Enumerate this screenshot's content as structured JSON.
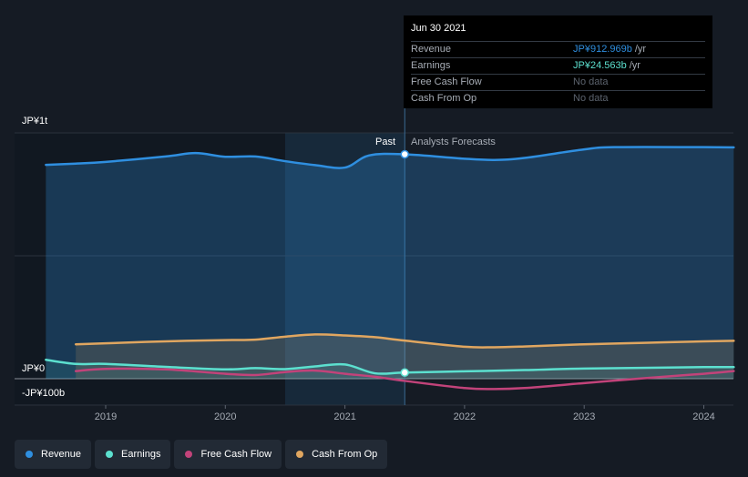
{
  "chart_data": {
    "type": "line",
    "y_axis": {
      "top_label": "JP¥1t",
      "zero_label": "JP¥0",
      "bottom_label": "-JP¥100b",
      "unit": "JP¥ billions",
      "ylim": [
        -100,
        1000
      ]
    },
    "x_ticks": [
      "2019",
      "2020",
      "2021",
      "2022",
      "2023",
      "2024"
    ],
    "regions": {
      "past_label": "Past",
      "forecast_label": "Analysts Forecasts",
      "split_date": 2021.5
    },
    "series": [
      {
        "name": "Revenue",
        "color": "#2f8fe0",
        "points": [
          [
            2018.5,
            870
          ],
          [
            2018.75,
            875
          ],
          [
            2019.0,
            882
          ],
          [
            2019.5,
            904
          ],
          [
            2019.75,
            918
          ],
          [
            2020.0,
            903
          ],
          [
            2020.25,
            904
          ],
          [
            2020.5,
            885
          ],
          [
            2020.75,
            869
          ],
          [
            2021.0,
            859
          ],
          [
            2021.2,
            908
          ],
          [
            2021.5,
            913
          ],
          [
            2022.0,
            895
          ],
          [
            2022.25,
            890
          ],
          [
            2022.5,
            898
          ],
          [
            2023.0,
            933
          ],
          [
            2023.25,
            942
          ],
          [
            2024.0,
            942
          ],
          [
            2024.25,
            941
          ]
        ]
      },
      {
        "name": "Earnings",
        "color": "#5ce0cf",
        "points": [
          [
            2018.5,
            77
          ],
          [
            2018.75,
            60
          ],
          [
            2019.0,
            60
          ],
          [
            2019.5,
            48
          ],
          [
            2020.0,
            38
          ],
          [
            2020.25,
            43
          ],
          [
            2020.5,
            39
          ],
          [
            2020.75,
            50
          ],
          [
            2021.0,
            58
          ],
          [
            2021.25,
            22
          ],
          [
            2021.5,
            25
          ],
          [
            2022.0,
            30
          ],
          [
            2022.5,
            35
          ],
          [
            2023.0,
            41
          ],
          [
            2024.0,
            47
          ],
          [
            2024.25,
            47
          ]
        ]
      },
      {
        "name": "Free Cash Flow",
        "color": "#c2437a",
        "points": [
          [
            2018.75,
            31
          ],
          [
            2019.0,
            40
          ],
          [
            2019.5,
            38
          ],
          [
            2020.0,
            20
          ],
          [
            2020.25,
            15
          ],
          [
            2020.5,
            27
          ],
          [
            2020.75,
            33
          ],
          [
            2021.0,
            20
          ],
          [
            2021.25,
            8
          ],
          [
            2021.5,
            -9
          ],
          [
            2022.0,
            -38
          ],
          [
            2022.25,
            -42
          ],
          [
            2022.5,
            -38
          ],
          [
            2023.0,
            -18
          ],
          [
            2023.5,
            2
          ],
          [
            2024.0,
            20
          ],
          [
            2024.25,
            31
          ]
        ]
      },
      {
        "name": "Cash From Op",
        "color": "#e0a660",
        "points": [
          [
            2018.75,
            140
          ],
          [
            2019.0,
            144
          ],
          [
            2019.5,
            152
          ],
          [
            2020.0,
            157
          ],
          [
            2020.25,
            159
          ],
          [
            2020.5,
            171
          ],
          [
            2020.75,
            180
          ],
          [
            2021.0,
            176
          ],
          [
            2021.25,
            169
          ],
          [
            2021.5,
            155
          ],
          [
            2022.0,
            130
          ],
          [
            2022.25,
            128
          ],
          [
            2022.5,
            131
          ],
          [
            2023.0,
            140
          ],
          [
            2023.5,
            146
          ],
          [
            2024.0,
            152
          ],
          [
            2024.25,
            154
          ]
        ]
      }
    ]
  },
  "tooltip": {
    "date": "Jun 30 2021",
    "rows": [
      {
        "label": "Revenue",
        "value": "JP¥912.969b",
        "unit": "/yr",
        "color": "#2f8fe0"
      },
      {
        "label": "Earnings",
        "value": "JP¥24.563b",
        "unit": "/yr",
        "color": "#5ce0cf"
      },
      {
        "label": "Free Cash Flow",
        "value": "No data",
        "unit": "",
        "color": "#5c636e"
      },
      {
        "label": "Cash From Op",
        "value": "No data",
        "unit": "",
        "color": "#5c636e"
      }
    ]
  },
  "legend": [
    {
      "label": "Revenue",
      "color": "#2f8fe0"
    },
    {
      "label": "Earnings",
      "color": "#5ce0cf"
    },
    {
      "label": "Free Cash Flow",
      "color": "#c2437a"
    },
    {
      "label": "Cash From Op",
      "color": "#e0a660"
    }
  ]
}
